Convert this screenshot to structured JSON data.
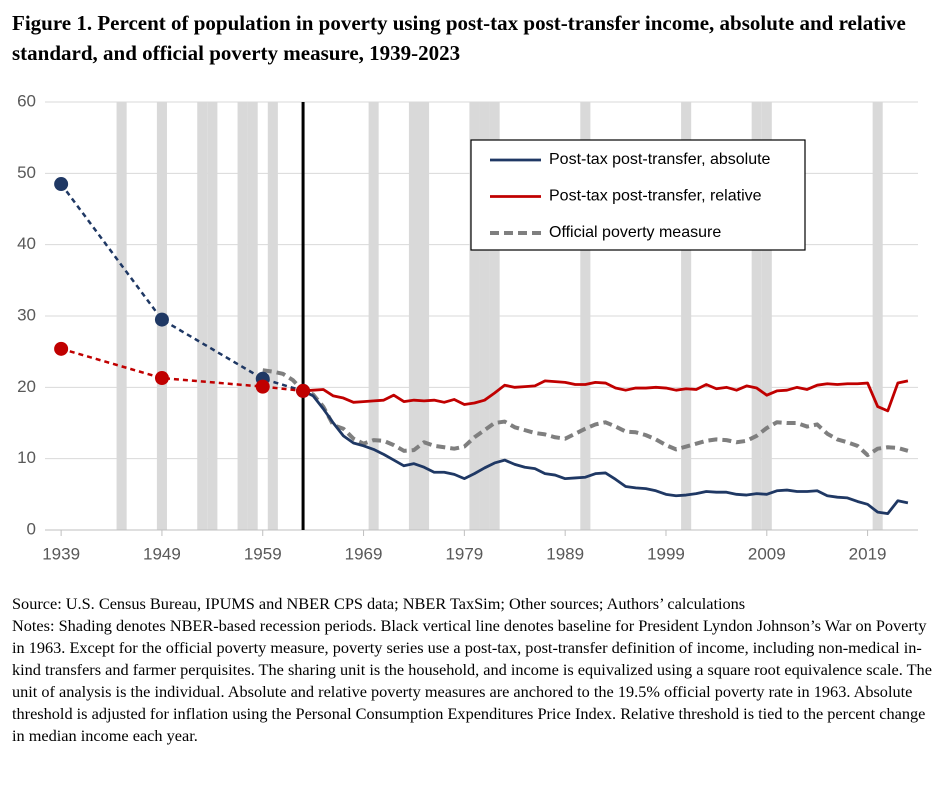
{
  "chart_data": {
    "type": "line",
    "title": "Figure 1. Percent of population in poverty using post-tax post-transfer income, absolute and relative standard, and official poverty measure, 1939-2023",
    "xlim": [
      1937.4,
      2024
    ],
    "xticks": [
      1939,
      1949,
      1959,
      1969,
      1979,
      1989,
      1999,
      2009,
      2019
    ],
    "ylim": [
      0,
      60
    ],
    "yticks": [
      0,
      10,
      20,
      30,
      40,
      50,
      60
    ],
    "grid": true,
    "baseline_year": 1963,
    "recession_years": [
      1945,
      1949,
      1953,
      1954,
      1957,
      1958,
      1960,
      1970,
      1974,
      1975,
      1980,
      1981,
      1982,
      1991,
      2001,
      2008,
      2009,
      2020
    ],
    "legend": "top-right",
    "series": [
      {
        "name": "Post-tax post-transfer, absolute",
        "color": "#1f3864",
        "dashed_through": 1963,
        "x": [
          1939,
          1949,
          1959,
          1963,
          1964,
          1965,
          1966,
          1967,
          1968,
          1969,
          1970,
          1971,
          1972,
          1973,
          1974,
          1975,
          1976,
          1977,
          1978,
          1979,
          1980,
          1981,
          1982,
          1983,
          1984,
          1985,
          1986,
          1987,
          1988,
          1989,
          1990,
          1991,
          1992,
          1993,
          1994,
          1995,
          1996,
          1997,
          1998,
          1999,
          2000,
          2001,
          2002,
          2003,
          2004,
          2005,
          2006,
          2007,
          2008,
          2009,
          2010,
          2011,
          2012,
          2013,
          2014,
          2015,
          2016,
          2017,
          2018,
          2019,
          2020,
          2021,
          2022,
          2023
        ],
        "values": [
          48.5,
          29.5,
          21.2,
          19.5,
          18.8,
          17.0,
          15.0,
          13.2,
          12.2,
          11.8,
          11.3,
          10.6,
          9.8,
          9.0,
          9.3,
          8.8,
          8.1,
          8.1,
          7.8,
          7.2,
          7.9,
          8.7,
          9.4,
          9.8,
          9.2,
          8.8,
          8.6,
          7.9,
          7.7,
          7.2,
          7.3,
          7.4,
          7.9,
          8.0,
          7.1,
          6.1,
          5.9,
          5.8,
          5.5,
          5.0,
          4.8,
          4.9,
          5.1,
          5.4,
          5.3,
          5.3,
          5.0,
          4.9,
          5.1,
          5.0,
          5.5,
          5.6,
          5.4,
          5.4,
          5.5,
          4.8,
          4.6,
          4.5,
          4.0,
          3.6,
          2.5,
          2.3,
          4.1,
          3.8
        ]
      },
      {
        "name": "Post-tax post-transfer, relative",
        "color": "#c00000",
        "dashed_through": 1963,
        "x": [
          1939,
          1949,
          1959,
          1963,
          1964,
          1965,
          1966,
          1967,
          1968,
          1969,
          1970,
          1971,
          1972,
          1973,
          1974,
          1975,
          1976,
          1977,
          1978,
          1979,
          1980,
          1981,
          1982,
          1983,
          1984,
          1985,
          1986,
          1987,
          1988,
          1989,
          1990,
          1991,
          1992,
          1993,
          1994,
          1995,
          1996,
          1997,
          1998,
          1999,
          2000,
          2001,
          2002,
          2003,
          2004,
          2005,
          2006,
          2007,
          2008,
          2009,
          2010,
          2011,
          2012,
          2013,
          2014,
          2015,
          2016,
          2017,
          2018,
          2019,
          2020,
          2021,
          2022,
          2023
        ],
        "values": [
          25.4,
          21.3,
          20.1,
          19.5,
          19.6,
          19.7,
          18.8,
          18.5,
          17.9,
          18.0,
          18.1,
          18.2,
          18.9,
          18.0,
          18.2,
          18.1,
          18.2,
          17.9,
          18.3,
          17.6,
          17.8,
          18.2,
          19.2,
          20.3,
          20.0,
          20.1,
          20.2,
          20.9,
          20.8,
          20.7,
          20.4,
          20.4,
          20.7,
          20.6,
          19.9,
          19.6,
          19.9,
          19.9,
          20.0,
          19.9,
          19.6,
          19.8,
          19.7,
          20.4,
          19.8,
          20.0,
          19.6,
          20.2,
          19.9,
          18.9,
          19.5,
          19.6,
          20.0,
          19.7,
          20.3,
          20.5,
          20.4,
          20.5,
          20.5,
          20.6,
          17.3,
          16.7,
          20.6,
          20.9
        ]
      },
      {
        "name": "Official poverty measure",
        "color": "#7f7f7f",
        "dashed": true,
        "x": [
          1959,
          1960,
          1961,
          1962,
          1963,
          1964,
          1965,
          1966,
          1967,
          1968,
          1969,
          1970,
          1971,
          1972,
          1973,
          1974,
          1975,
          1976,
          1977,
          1978,
          1979,
          1980,
          1981,
          1982,
          1983,
          1984,
          1985,
          1986,
          1987,
          1988,
          1989,
          1990,
          1991,
          1992,
          1993,
          1994,
          1995,
          1996,
          1997,
          1998,
          1999,
          2000,
          2001,
          2002,
          2003,
          2004,
          2005,
          2006,
          2007,
          2008,
          2009,
          2010,
          2011,
          2012,
          2013,
          2014,
          2015,
          2016,
          2017,
          2018,
          2019,
          2020,
          2021,
          2022,
          2023
        ],
        "values": [
          22.4,
          22.2,
          21.9,
          21.0,
          19.5,
          19.0,
          17.3,
          14.7,
          14.2,
          12.8,
          12.1,
          12.6,
          12.5,
          11.9,
          11.1,
          11.2,
          12.3,
          11.8,
          11.6,
          11.4,
          11.7,
          13.0,
          14.0,
          15.0,
          15.2,
          14.4,
          14.0,
          13.6,
          13.4,
          13.0,
          12.8,
          13.5,
          14.2,
          14.8,
          15.1,
          14.5,
          13.8,
          13.7,
          13.3,
          12.7,
          11.9,
          11.3,
          11.7,
          12.1,
          12.5,
          12.7,
          12.6,
          12.3,
          12.5,
          13.2,
          14.3,
          15.1,
          15.0,
          15.0,
          14.5,
          14.8,
          13.5,
          12.7,
          12.3,
          11.8,
          10.5,
          11.4,
          11.6,
          11.5,
          11.1
        ]
      }
    ],
    "source": "Source: U.S. Census Bureau, IPUMS and NBER CPS data; NBER TaxSim; Other sources; Authors’ calculations",
    "notes": "Notes: Shading denotes NBER-based recession periods. Black vertical line denotes baseline for President Lyndon Johnson’s War on Poverty in 1963. Except for the official poverty measure, poverty series use a post-tax, post-transfer definition of income, including non-medical in-kind transfers and farmer perquisites. The sharing unit is the household, and income is equivalized using a square root equivalence scale. The unit of analysis is the individual. Absolute and relative poverty measures are anchored to the 19.5% official poverty rate in 1963. Absolute threshold is adjusted for inflation using the Personal Consumption Expenditures Price Index. Relative threshold is tied to the percent change in median income each year."
  }
}
